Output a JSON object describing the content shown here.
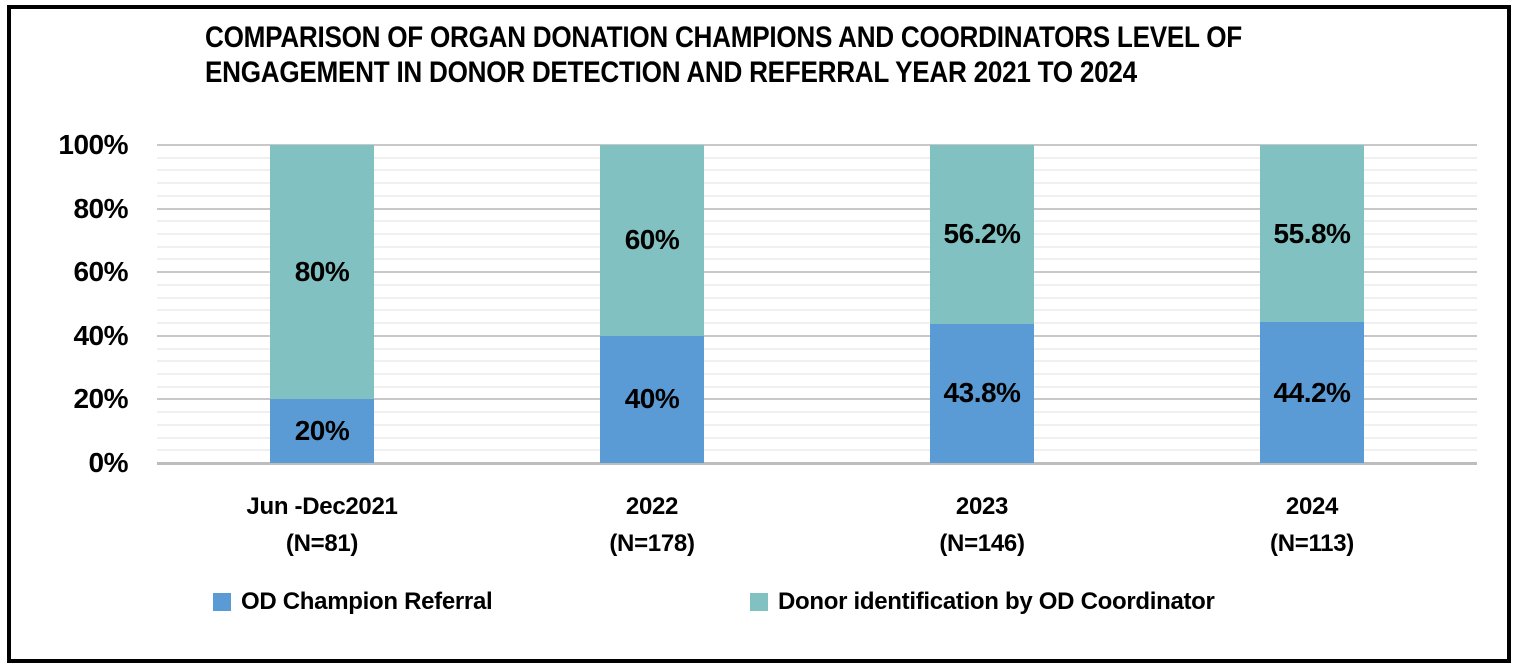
{
  "header": {
    "title_line1": "COMPARISON OF ORGAN DONATION CHAMPIONS AND COORDINATORS LEVEL OF",
    "title_line2": "ENGAGEMENT IN DONOR DETECTION AND REFERRAL YEAR 2021 TO 2024"
  },
  "colors": {
    "od_champion_blue": "#5B9BD5",
    "od_coordinator_teal": "#81C1C2",
    "gridline_major": "#C8C8C8",
    "gridline_minor": "#F0F0F0",
    "axis_line": "#BDBDBD",
    "text": "#000000",
    "frame_border": "#000000"
  },
  "chart_data": {
    "type": "bar",
    "subtype": "stacked-100-percent-column",
    "title": "COMPARISON OF ORGAN DONATION CHAMPIONS AND COORDINATORS LEVEL OF ENGAGEMENT IN DONOR DETECTION AND REFERRAL YEAR 2021 TO 2024",
    "categories": [
      {
        "label": "Jun -Dec2021",
        "sublabel": "(N=81)"
      },
      {
        "label": "2022",
        "sublabel": "(N=178)"
      },
      {
        "label": "2023",
        "sublabel": "(N=146)"
      },
      {
        "label": "2024",
        "sublabel": "(N=113)"
      }
    ],
    "series": [
      {
        "name": "OD Champion Referral",
        "color": "#5B9BD5",
        "values": [
          20,
          40,
          43.8,
          44.2
        ],
        "labels": [
          "20%",
          "40%",
          "43.8%",
          "44.2%"
        ]
      },
      {
        "name": "Donor identification by OD Coordinator",
        "color": "#81C1C2",
        "values": [
          80,
          60,
          56.2,
          55.8
        ],
        "labels": [
          "80%",
          "60%",
          "56.2%",
          "55.8%"
        ]
      }
    ],
    "y_axis": {
      "min": 0,
      "max": 100,
      "major_step": 20,
      "minor_step": 4,
      "tick_labels": [
        "0%",
        "20%",
        "40%",
        "60%",
        "80%",
        "100%"
      ]
    },
    "grid": true,
    "legend_position": "bottom"
  }
}
